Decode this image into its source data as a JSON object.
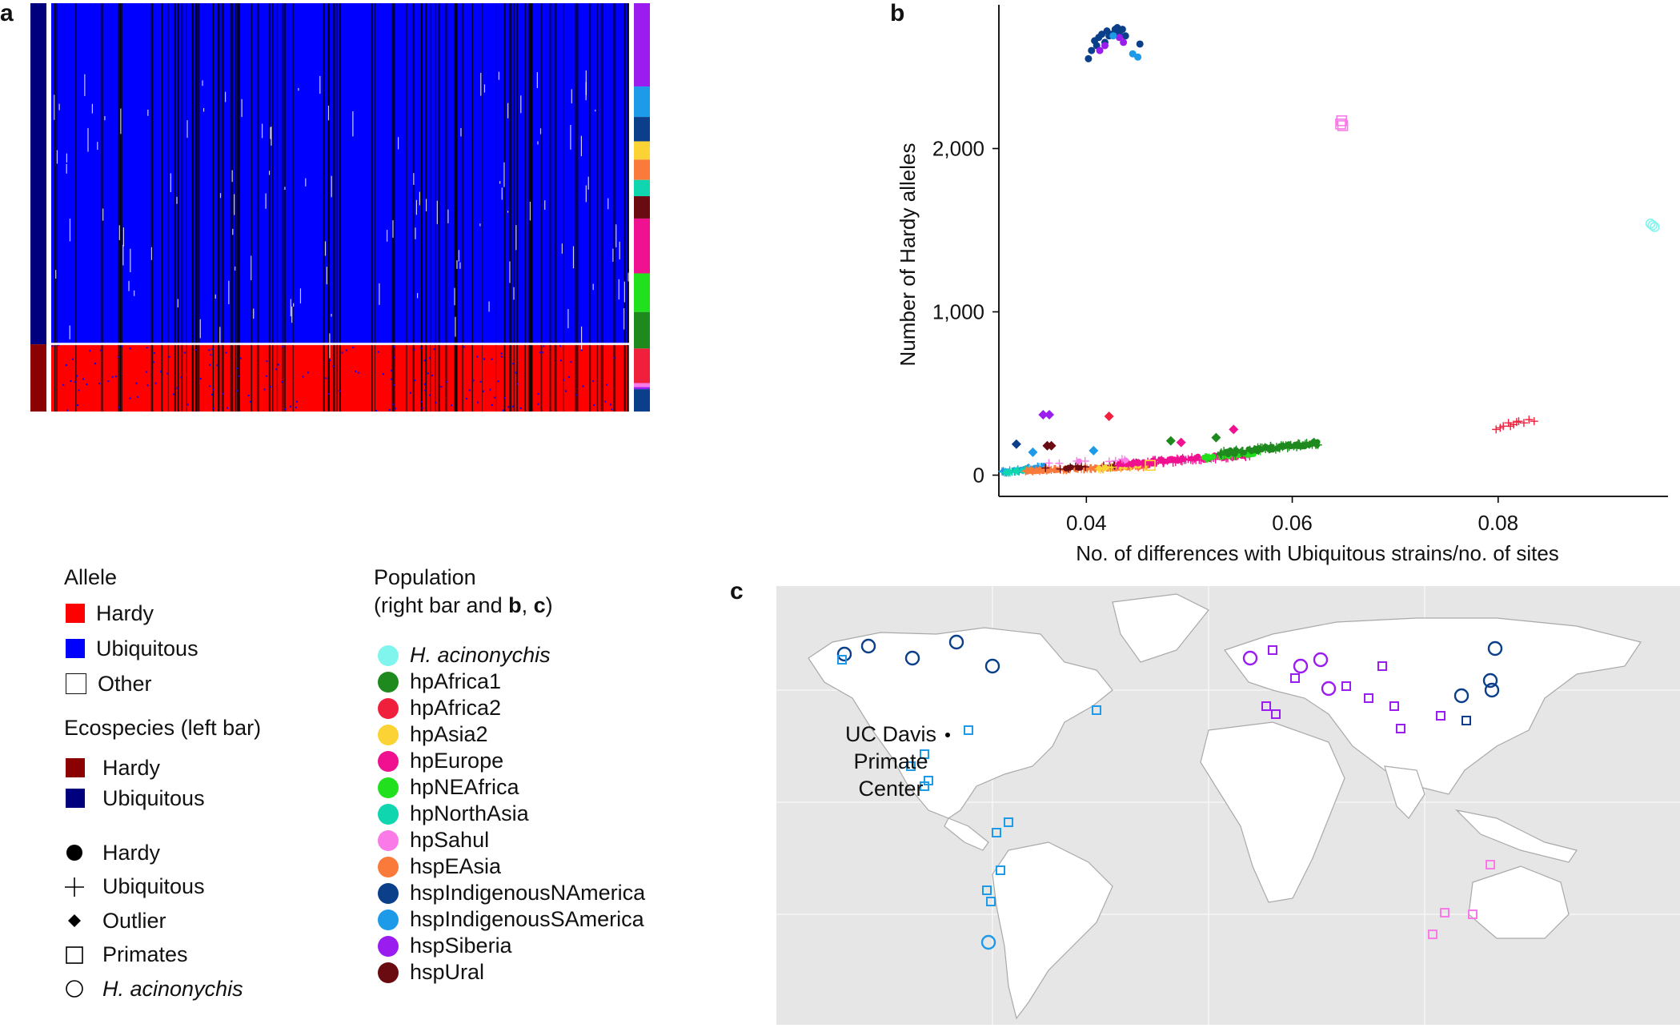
{
  "panels": {
    "a": "a",
    "b": "b",
    "c": "c"
  },
  "heatmap": {
    "hardy_fraction_rows": 0.09,
    "right_bar_populations": [
      "hspSiberia",
      "hspIndigenousSAmerica",
      "hspIndigenousNAmerica",
      "hpAsia2",
      "hspEAsia",
      "hpNorthAsia",
      "hspUral",
      "hpEurope",
      "hpNEAfrica",
      "hpAfrica1",
      "hpAfrica2",
      "hpSahul",
      "hspSiberia",
      "hspIndigenousNAmerica"
    ],
    "right_bar_fractions": [
      0.205,
      0.075,
      0.06,
      0.045,
      0.05,
      0.04,
      0.055,
      0.135,
      0.095,
      0.09,
      0.085,
      0.01,
      0.005,
      0.055
    ]
  },
  "legend_allele": {
    "title": "Allele",
    "items": [
      {
        "label": "Hardy",
        "color": "#ff0000"
      },
      {
        "label": "Ubiquitous",
        "color": "#0000ff"
      },
      {
        "label": "Other",
        "color": "#ffffff"
      }
    ]
  },
  "legend_ecospecies": {
    "title": "Ecospecies (left bar)",
    "items": [
      {
        "label": "Hardy",
        "color": "#8b0000"
      },
      {
        "label": "Ubiquitous",
        "color": "#00007f"
      }
    ]
  },
  "legend_shapes": {
    "items": [
      {
        "label": "Hardy",
        "icon": "filled-circle"
      },
      {
        "label": "Ubiquitous",
        "icon": "plus"
      },
      {
        "label": "Outlier",
        "icon": "diamond"
      },
      {
        "label": "Primates",
        "icon": "square"
      },
      {
        "label": "H. acinonychis",
        "icon": "open-circle"
      }
    ]
  },
  "legend_population": {
    "title_line1": "Population",
    "title_line2_prefix": "(right bar and ",
    "title_b": "b",
    "title_sep": ", ",
    "title_c": "c",
    "title_suffix": ")",
    "items": [
      {
        "label": "H. acinonychis",
        "color": "#7ff5ee"
      },
      {
        "label": "hpAfrica1",
        "color": "#1e8a1e"
      },
      {
        "label": "hpAfrica2",
        "color": "#f0203c"
      },
      {
        "label": "hpAsia2",
        "color": "#fbd335"
      },
      {
        "label": "hpEurope",
        "color": "#ef118f"
      },
      {
        "label": "hpNEAfrica",
        "color": "#21e01d"
      },
      {
        "label": "hpNorthAsia",
        "color": "#10d6b0"
      },
      {
        "label": "hpSahul",
        "color": "#fa7be7"
      },
      {
        "label": "hspEAsia",
        "color": "#fa7a3b"
      },
      {
        "label": "hspIndigenousNAmerica",
        "color": "#0b3f8a"
      },
      {
        "label": "hspIndigenousSAmerica",
        "color": "#1e9be8"
      },
      {
        "label": "hspSiberia",
        "color": "#9a1cee"
      },
      {
        "label": "hspUral",
        "color": "#6a0b12"
      }
    ]
  },
  "chart_data": {
    "type": "scatter",
    "title": "",
    "xlabel": "No. of differences with Ubiquitous strains/no. of sites",
    "ylabel": "Number of Hardy alleles",
    "xlim": [
      0.0315,
      0.0965
    ],
    "ylim": [
      -130,
      2880
    ],
    "xticks": [
      0.04,
      0.06,
      0.08
    ],
    "xtick_labels": [
      "0.04",
      "0.06",
      "0.08"
    ],
    "yticks": [
      0,
      1000,
      2000
    ],
    "ytick_labels": [
      "0",
      "1,000",
      "2,000"
    ],
    "grid": false,
    "clusters": [
      {
        "series": "hspIndigenousNAmerica",
        "shape": "circle",
        "points": [
          [
            0.0402,
            2550
          ],
          [
            0.0405,
            2600
          ],
          [
            0.041,
            2630
          ],
          [
            0.0412,
            2680
          ],
          [
            0.0415,
            2700
          ],
          [
            0.0418,
            2650
          ],
          [
            0.042,
            2720
          ],
          [
            0.0425,
            2700
          ],
          [
            0.0428,
            2730
          ],
          [
            0.043,
            2740
          ],
          [
            0.0432,
            2710
          ],
          [
            0.0438,
            2690
          ],
          [
            0.0408,
            2660
          ],
          [
            0.0422,
            2690
          ],
          [
            0.0435,
            2730
          ],
          [
            0.0452,
            2640
          ]
        ]
      },
      {
        "series": "hspSiberia",
        "shape": "circle",
        "points": [
          [
            0.0413,
            2600
          ],
          [
            0.0418,
            2630
          ],
          [
            0.0432,
            2680
          ],
          [
            0.0436,
            2650
          ]
        ]
      },
      {
        "series": "hspIndigenousSAmerica",
        "shape": "circle",
        "points": [
          [
            0.0445,
            2580
          ],
          [
            0.045,
            2560
          ],
          [
            0.0426,
            2690
          ]
        ]
      },
      {
        "series": "hpSahul",
        "shape": "square",
        "points": [
          [
            0.0647,
            2150
          ],
          [
            0.0648,
            2170
          ],
          [
            0.0649,
            2140
          ]
        ]
      },
      {
        "series": "H. acinonychis",
        "shape": "circle",
        "points": [
          [
            0.0948,
            1540
          ],
          [
            0.095,
            1530
          ],
          [
            0.0952,
            1520
          ]
        ]
      },
      {
        "series": "hpAfrica2",
        "shape": "plus",
        "points": [
          [
            0.0798,
            280
          ],
          [
            0.0805,
            300
          ],
          [
            0.081,
            320
          ],
          [
            0.0815,
            310
          ],
          [
            0.082,
            330
          ],
          [
            0.0825,
            320
          ],
          [
            0.083,
            340
          ],
          [
            0.0835,
            330
          ],
          [
            0.0802,
            290
          ],
          [
            0.0812,
            300
          ],
          [
            0.0818,
            325
          ]
        ]
      },
      {
        "series": "hspSiberia",
        "shape": "diamond",
        "points": [
          [
            0.0358,
            370
          ],
          [
            0.0364,
            370
          ]
        ]
      },
      {
        "series": "hpAfrica2",
        "shape": "diamond",
        "points": [
          [
            0.0422,
            360
          ]
        ]
      },
      {
        "series": "hpEurope",
        "shape": "diamond",
        "points": [
          [
            0.0543,
            280
          ]
        ]
      },
      {
        "series": "hpAfrica1",
        "shape": "diamond",
        "points": [
          [
            0.0526,
            230
          ],
          [
            0.0482,
            210
          ]
        ]
      },
      {
        "series": "hspIndigenousNAmerica",
        "shape": "diamond",
        "points": [
          [
            0.0332,
            190
          ]
        ]
      },
      {
        "series": "hspUral",
        "shape": "diamond",
        "points": [
          [
            0.0362,
            180
          ],
          [
            0.0366,
            180
          ]
        ]
      },
      {
        "series": "hpEurope",
        "shape": "diamond",
        "points": [
          [
            0.0492,
            200
          ]
        ]
      },
      {
        "series": "hspIndigenousSAmerica",
        "shape": "diamond",
        "points": [
          [
            0.0407,
            150
          ],
          [
            0.0348,
            140
          ]
        ]
      },
      {
        "series": "hpAsia2",
        "shape": "square",
        "points": [
          [
            0.0462,
            60
          ]
        ]
      }
    ],
    "bands": [
      {
        "series": "hspIndigenousSAmerica",
        "x_range": [
          0.0318,
          0.036
        ],
        "y_range": [
          10,
          60
        ],
        "n": 40
      },
      {
        "series": "hpNorthAsia",
        "x_range": [
          0.032,
          0.0345
        ],
        "y_range": [
          10,
          40
        ],
        "n": 20
      },
      {
        "series": "hspEAsia",
        "x_range": [
          0.034,
          0.046
        ],
        "y_range": [
          20,
          60
        ],
        "n": 110
      },
      {
        "series": "hspUral",
        "x_range": [
          0.036,
          0.045
        ],
        "y_range": [
          30,
          80
        ],
        "n": 25
      },
      {
        "series": "hpAsia2",
        "x_range": [
          0.041,
          0.046
        ],
        "y_range": [
          30,
          70
        ],
        "n": 20
      },
      {
        "series": "hpEurope",
        "x_range": [
          0.043,
          0.056
        ],
        "y_range": [
          50,
          140
        ],
        "n": 120
      },
      {
        "series": "hpNEAfrica",
        "x_range": [
          0.051,
          0.057
        ],
        "y_range": [
          90,
          150
        ],
        "n": 35
      },
      {
        "series": "hpAfrica1",
        "x_range": [
          0.053,
          0.0625
        ],
        "y_range": [
          120,
          210
        ],
        "n": 110
      },
      {
        "series": "hpSahul",
        "x_range": [
          0.034,
          0.044
        ],
        "y_range": [
          60,
          100
        ],
        "n": 10
      }
    ]
  },
  "map": {
    "annotation_line1": "UC Davis",
    "annotation_line2": "Primate",
    "annotation_line3": "Center"
  }
}
